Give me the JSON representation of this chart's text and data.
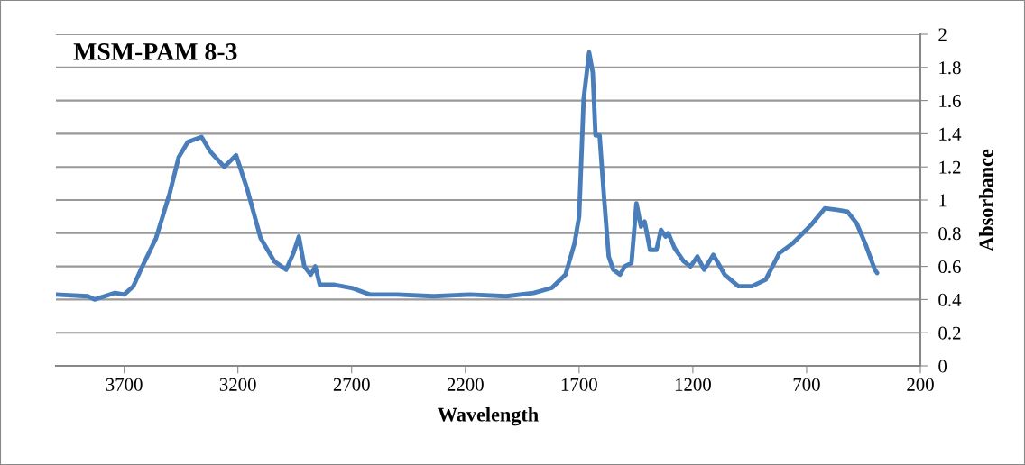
{
  "chart_data": {
    "type": "line",
    "title": "MSM-PAM 8-3",
    "xlabel": "Wavelength",
    "y2label": "Absorbance",
    "xlim": [
      4000,
      200
    ],
    "xticks": [
      3700,
      3200,
      2700,
      2200,
      1700,
      1200,
      700,
      200
    ],
    "y2lim": [
      0,
      2
    ],
    "y2ticks": [
      0,
      0.2,
      0.4,
      0.6,
      0.8,
      1,
      1.2,
      1.4,
      1.6,
      1.8,
      2
    ],
    "grid": "y",
    "legend": false,
    "marker": "none",
    "line_style": "solid",
    "series": [
      {
        "color": "#4a7ebb",
        "axis": "y2",
        "x": [
          4000,
          3860,
          3830,
          3740,
          3700,
          3660,
          3620,
          3560,
          3500,
          3460,
          3420,
          3360,
          3320,
          3260,
          3208,
          3160,
          3100,
          3040,
          2988,
          2956,
          2932,
          2908,
          2880,
          2860,
          2840,
          2780,
          2700,
          2620,
          2500,
          2340,
          2180,
          2020,
          1900,
          1820,
          1760,
          1720,
          1700,
          1680,
          1656,
          1640,
          1628,
          1610,
          1590,
          1570,
          1550,
          1520,
          1500,
          1470,
          1448,
          1428,
          1412,
          1388,
          1360,
          1340,
          1320,
          1308,
          1280,
          1240,
          1210,
          1180,
          1150,
          1110,
          1060,
          1000,
          940,
          880,
          820,
          760,
          680,
          620,
          560,
          520,
          480,
          440,
          400,
          390
        ],
        "values": [
          0.43,
          0.42,
          0.4,
          0.44,
          0.43,
          0.48,
          0.6,
          0.77,
          1.04,
          1.26,
          1.35,
          1.38,
          1.29,
          1.2,
          1.27,
          1.07,
          0.77,
          0.63,
          0.58,
          0.68,
          0.78,
          0.6,
          0.55,
          0.6,
          0.49,
          0.49,
          0.47,
          0.43,
          0.43,
          0.42,
          0.43,
          0.42,
          0.44,
          0.47,
          0.55,
          0.74,
          0.9,
          1.61,
          1.89,
          1.77,
          1.39,
          1.39,
          1.01,
          0.66,
          0.58,
          0.55,
          0.6,
          0.62,
          0.98,
          0.84,
          0.87,
          0.7,
          0.7,
          0.82,
          0.78,
          0.8,
          0.71,
          0.63,
          0.6,
          0.66,
          0.58,
          0.67,
          0.55,
          0.48,
          0.48,
          0.52,
          0.68,
          0.74,
          0.85,
          0.95,
          0.94,
          0.93,
          0.86,
          0.73,
          0.58,
          0.56
        ]
      }
    ]
  }
}
